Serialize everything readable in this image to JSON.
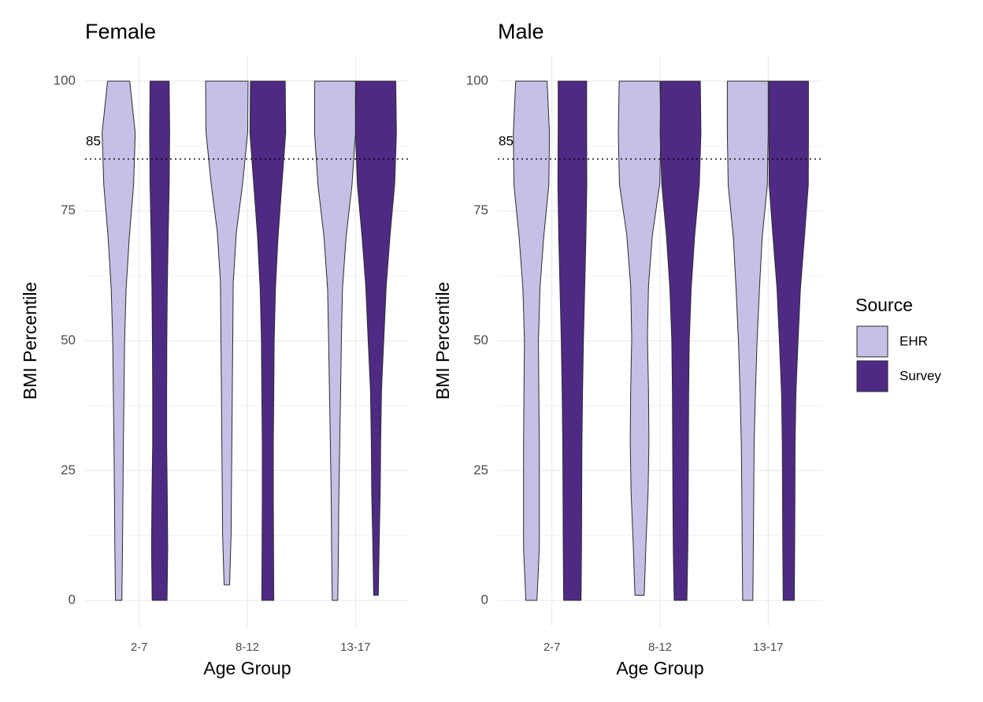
{
  "chart_data": [
    {
      "type": "violin",
      "title": "Female",
      "x_label": "Age Group",
      "y_label": "BMI Percentile",
      "categories": [
        "2-7",
        "8-12",
        "13-17"
      ],
      "ylim": [
        -5,
        105
      ],
      "yticks": [
        0,
        25,
        50,
        75,
        100
      ],
      "grid": true,
      "hline": 85,
      "series": [
        {
          "name": "EHR",
          "color": "#c6bfe6",
          "violins": [
            {
              "ymin": 0,
              "ymax": 100,
              "widths": [
                0.15,
                0.18,
                0.2,
                0.22,
                0.25,
                0.28,
                0.35,
                0.5,
                0.7,
                0.78,
                0.52
              ]
            },
            {
              "ymin": 3,
              "ymax": 100,
              "widths": [
                0.13,
                0.2,
                0.22,
                0.24,
                0.26,
                0.28,
                0.3,
                0.45,
                0.75,
                0.98,
                1.0
              ]
            },
            {
              "ymin": 0,
              "ymax": 100,
              "widths": [
                0.13,
                0.16,
                0.18,
                0.22,
                0.26,
                0.3,
                0.35,
                0.52,
                0.8,
                0.96,
                0.96
              ]
            }
          ]
        },
        {
          "name": "Survey",
          "color": "#4f2a85",
          "violins": [
            {
              "ymin": 0,
              "ymax": 100,
              "widths": [
                0.35,
                0.38,
                0.36,
                0.33,
                0.33,
                0.34,
                0.36,
                0.4,
                0.45,
                0.47,
                0.45
              ]
            },
            {
              "ymin": 0,
              "ymax": 100,
              "widths": [
                0.28,
                0.27,
                0.26,
                0.26,
                0.28,
                0.3,
                0.36,
                0.48,
                0.66,
                0.84,
                0.82
              ]
            },
            {
              "ymin": 1,
              "ymax": 100,
              "widths": [
                0.11,
                0.15,
                0.2,
                0.22,
                0.26,
                0.37,
                0.48,
                0.66,
                0.88,
                0.96,
                0.93
              ]
            }
          ]
        }
      ]
    },
    {
      "type": "violin",
      "title": "Male",
      "x_label": "Age Group",
      "y_label": "BMI Percentile",
      "categories": [
        "2-7",
        "8-12",
        "13-17"
      ],
      "ylim": [
        -5,
        105
      ],
      "yticks": [
        0,
        25,
        50,
        75,
        100
      ],
      "grid": true,
      "hline": 85,
      "series": [
        {
          "name": "EHR",
          "color": "#c6bfe6",
          "violins": [
            {
              "ymin": 0,
              "ymax": 100,
              "widths": [
                0.26,
                0.37,
                0.37,
                0.37,
                0.35,
                0.33,
                0.4,
                0.58,
                0.82,
                0.85,
                0.74
              ]
            },
            {
              "ymin": 1,
              "ymax": 100,
              "widths": [
                0.22,
                0.3,
                0.4,
                0.44,
                0.42,
                0.37,
                0.42,
                0.6,
                0.95,
                1.0,
                0.96
              ]
            },
            {
              "ymin": 0,
              "ymax": 100,
              "widths": [
                0.24,
                0.26,
                0.28,
                0.3,
                0.36,
                0.44,
                0.55,
                0.68,
                0.92,
                0.96,
                0.96
              ]
            }
          ]
        },
        {
          "name": "Survey",
          "color": "#4f2a85",
          "violins": [
            {
              "ymin": 0,
              "ymax": 100,
              "widths": [
                0.41,
                0.43,
                0.44,
                0.45,
                0.48,
                0.52,
                0.58,
                0.64,
                0.68,
                0.67,
                0.67
              ]
            },
            {
              "ymin": 0,
              "ymax": 100,
              "widths": [
                0.3,
                0.34,
                0.36,
                0.37,
                0.38,
                0.41,
                0.5,
                0.66,
                0.88,
                0.96,
                0.93
              ]
            },
            {
              "ymin": 0,
              "ymax": 100,
              "widths": [
                0.26,
                0.28,
                0.29,
                0.3,
                0.34,
                0.44,
                0.55,
                0.74,
                0.92,
                0.93,
                0.93
              ]
            }
          ]
        }
      ]
    }
  ],
  "legend": {
    "title": "Source",
    "position": "right"
  }
}
